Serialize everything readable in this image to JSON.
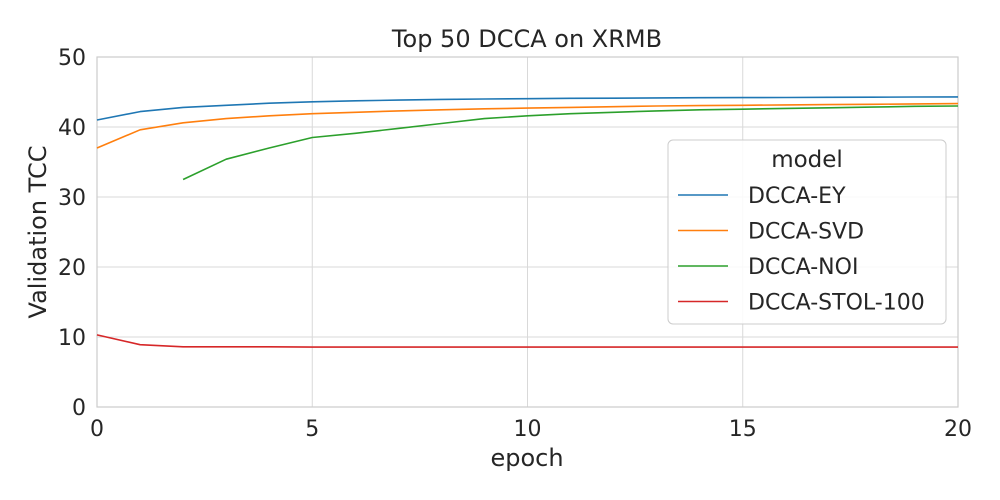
{
  "chart_data": {
    "type": "line",
    "title": "Top 50 DCCA on XRMB",
    "xlabel": "epoch",
    "ylabel": "Validation TCC",
    "xlim": [
      0,
      20
    ],
    "ylim": [
      0,
      50
    ],
    "x_ticks": [
      0,
      5,
      10,
      15,
      20
    ],
    "y_ticks": [
      0,
      10,
      20,
      30,
      40,
      50
    ],
    "grid": true,
    "legend": {
      "title": "model",
      "placement": "center-right"
    },
    "series": [
      {
        "name": "DCCA-EY",
        "color": "#1f77b4",
        "x": [
          0,
          1,
          2,
          3,
          4,
          5,
          6,
          7,
          8,
          9,
          10,
          11,
          12,
          13,
          14,
          15,
          16,
          17,
          18,
          19,
          20
        ],
        "y": [
          41.0,
          42.2,
          42.8,
          43.1,
          43.4,
          43.6,
          43.75,
          43.85,
          43.95,
          44.0,
          44.05,
          44.1,
          44.12,
          44.15,
          44.18,
          44.2,
          44.22,
          44.24,
          44.26,
          44.28,
          44.3
        ]
      },
      {
        "name": "DCCA-SVD",
        "color": "#ff7f0e",
        "x": [
          0,
          1,
          2,
          3,
          4,
          5,
          6,
          7,
          8,
          9,
          10,
          11,
          12,
          13,
          14,
          15,
          16,
          17,
          18,
          19,
          20
        ],
        "y": [
          37.0,
          39.6,
          40.6,
          41.2,
          41.6,
          41.9,
          42.1,
          42.3,
          42.45,
          42.6,
          42.7,
          42.8,
          42.9,
          43.0,
          43.05,
          43.1,
          43.15,
          43.2,
          43.25,
          43.3,
          43.35
        ]
      },
      {
        "name": "DCCA-NOI",
        "color": "#2ca02c",
        "x": [
          2,
          3,
          4,
          5,
          6,
          7,
          8,
          9,
          10,
          11,
          12,
          13,
          14,
          15,
          16,
          17,
          18,
          19,
          20
        ],
        "y": [
          32.5,
          35.4,
          37.0,
          38.5,
          39.1,
          39.8,
          40.5,
          41.2,
          41.6,
          41.9,
          42.1,
          42.3,
          42.45,
          42.55,
          42.65,
          42.75,
          42.85,
          42.95,
          43.0
        ]
      },
      {
        "name": "DCCA-STOL-100",
        "color": "#d62728",
        "x": [
          0,
          1,
          2,
          3,
          4,
          5,
          6,
          7,
          8,
          9,
          10,
          11,
          12,
          13,
          14,
          15,
          16,
          17,
          18,
          19,
          20
        ],
        "y": [
          10.3,
          8.9,
          8.6,
          8.6,
          8.6,
          8.55,
          8.55,
          8.55,
          8.55,
          8.55,
          8.55,
          8.55,
          8.55,
          8.55,
          8.55,
          8.55,
          8.55,
          8.55,
          8.55,
          8.55,
          8.55
        ]
      }
    ]
  }
}
